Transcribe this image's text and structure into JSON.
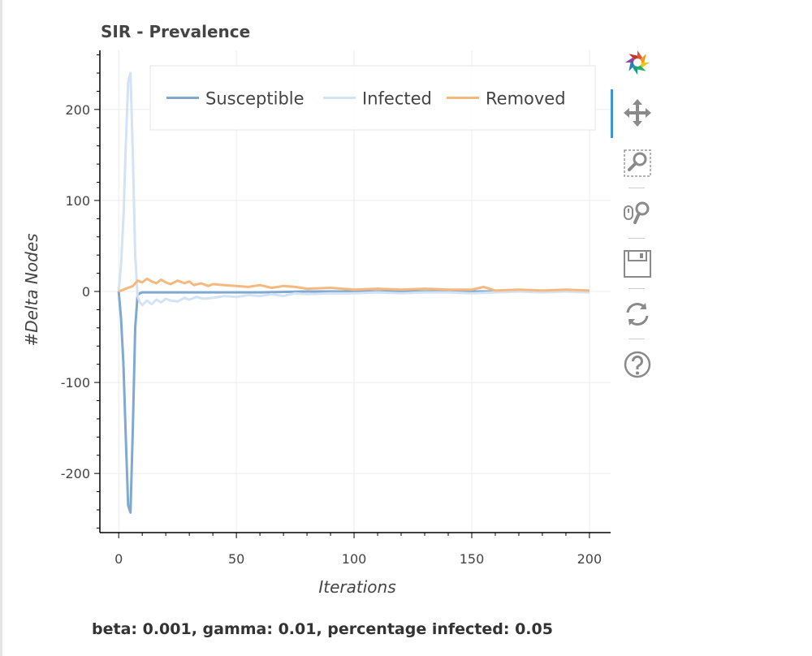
{
  "caption": "beta: 0.001, gamma: 0.01, percentage infected: 0.05",
  "toolbar": {
    "tools": [
      {
        "name": "bokeh-logo-icon"
      },
      {
        "name": "pan-icon",
        "active": true
      },
      {
        "name": "box-zoom-icon"
      },
      {
        "name": "wheel-zoom-icon"
      },
      {
        "name": "save-icon"
      },
      {
        "name": "reset-icon"
      },
      {
        "name": "help-icon"
      }
    ],
    "active_color": "#3c96d2"
  },
  "chart_data": {
    "type": "line",
    "title": "SIR - Prevalence",
    "xlabel": "Iterations",
    "ylabel": "#Delta Nodes",
    "xlim": [
      -8,
      209
    ],
    "ylim": [
      -265,
      265
    ],
    "xticks": [
      0,
      50,
      100,
      150,
      200
    ],
    "yticks": [
      -200,
      -100,
      0,
      100,
      200
    ],
    "xtick_labels": [
      "0",
      "50",
      "100",
      "150",
      "200"
    ],
    "ytick_labels": [
      "-200",
      "-100",
      "0",
      "100",
      "200"
    ],
    "grid": true,
    "legend": {
      "placement": "top",
      "orientation": "horizontal"
    },
    "series": [
      {
        "name": "Susceptible",
        "color": "#7fa9d1",
        "x": [
          0,
          1,
          2,
          3,
          4,
          5,
          6,
          7,
          8,
          9,
          10,
          15,
          20,
          25,
          30,
          40,
          50,
          60,
          80,
          100,
          120,
          150,
          180,
          200
        ],
        "y": [
          0,
          -30,
          -80,
          -160,
          -235,
          -243,
          -150,
          -40,
          -4,
          -2,
          -1,
          -1,
          -1,
          -1,
          -1,
          -1,
          -1,
          -1,
          0,
          0,
          0,
          0,
          0,
          0
        ]
      },
      {
        "name": "Infected",
        "color": "#d4e2f5",
        "x": [
          0,
          1,
          2,
          3,
          4,
          5,
          6,
          7,
          8,
          9,
          10,
          12,
          14,
          16,
          18,
          20,
          22,
          25,
          28,
          30,
          33,
          36,
          40,
          45,
          50,
          55,
          60,
          65,
          70,
          75,
          80,
          90,
          100,
          110,
          120,
          130,
          140,
          150,
          160,
          170,
          180,
          190,
          200
        ],
        "y": [
          0,
          30,
          80,
          160,
          230,
          240,
          150,
          40,
          -5,
          -12,
          -15,
          -10,
          -14,
          -9,
          -12,
          -8,
          -10,
          -11,
          -7,
          -9,
          -6,
          -8,
          -7,
          -5,
          -6,
          -4,
          -5,
          -3,
          -5,
          -2,
          -3,
          -2,
          -2,
          -1,
          -2,
          -1,
          -1,
          -2,
          -1,
          0,
          -1,
          0,
          -1
        ]
      },
      {
        "name": "Removed",
        "color": "#f5b97f",
        "x": [
          0,
          2,
          4,
          6,
          8,
          10,
          12,
          14,
          16,
          18,
          20,
          22,
          25,
          28,
          30,
          32,
          35,
          38,
          40,
          45,
          50,
          55,
          60,
          65,
          70,
          75,
          80,
          90,
          100,
          110,
          120,
          130,
          140,
          150,
          155,
          160,
          170,
          180,
          190,
          200
        ],
        "y": [
          0,
          2,
          4,
          6,
          12,
          10,
          14,
          11,
          9,
          13,
          10,
          8,
          12,
          9,
          11,
          7,
          9,
          6,
          8,
          7,
          6,
          5,
          7,
          4,
          6,
          5,
          3,
          4,
          2,
          3,
          2,
          3,
          2,
          2,
          5,
          1,
          2,
          1,
          2,
          1
        ]
      }
    ]
  }
}
